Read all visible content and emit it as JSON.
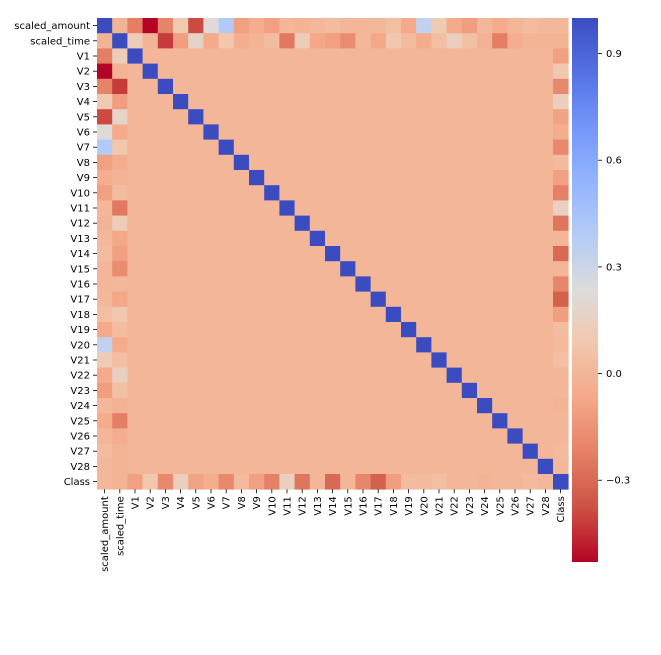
{
  "chart_data": {
    "type": "heatmap",
    "title": "",
    "labels": [
      "scaled_amount",
      "scaled_time",
      "V1",
      "V2",
      "V3",
      "V4",
      "V5",
      "V6",
      "V7",
      "V8",
      "V9",
      "V10",
      "V11",
      "V12",
      "V13",
      "V14",
      "V15",
      "V16",
      "V17",
      "V18",
      "V19",
      "V20",
      "V21",
      "V22",
      "V23",
      "V24",
      "V25",
      "V26",
      "V27",
      "V28",
      "Class"
    ],
    "colormap": "coolwarm_r",
    "vmin": -0.53,
    "vmax": 1.0,
    "colorbar_ticks": [
      -0.3,
      0.0,
      0.3,
      0.6,
      0.9
    ],
    "colorbar_tick_labels": [
      "−0.3",
      "0.0",
      "0.3",
      "0.6",
      "0.9"
    ],
    "row_amount": [
      1.0,
      -0.01,
      -0.23,
      -0.53,
      -0.21,
      0.1,
      -0.39,
      0.22,
      0.4,
      -0.1,
      -0.04,
      -0.1,
      0.0,
      -0.01,
      0.01,
      0.03,
      -0.0,
      -0.0,
      0.01,
      0.04,
      -0.06,
      0.34,
      0.11,
      -0.06,
      -0.11,
      0.01,
      -0.05,
      -0.0,
      0.03,
      0.01,
      0.01
    ],
    "row_time": [
      -0.01,
      1.0,
      0.12,
      -0.01,
      -0.42,
      -0.11,
      0.17,
      -0.06,
      0.08,
      -0.04,
      -0.01,
      0.03,
      -0.25,
      0.12,
      -0.07,
      -0.1,
      -0.18,
      0.01,
      -0.07,
      0.09,
      0.03,
      -0.05,
      0.04,
      0.14,
      0.05,
      -0.02,
      -0.23,
      -0.04,
      -0.01,
      -0.01,
      -0.01
    ],
    "row_class": [
      0.01,
      -0.01,
      -0.1,
      0.09,
      -0.19,
      0.13,
      -0.09,
      -0.04,
      -0.19,
      0.02,
      -0.1,
      -0.22,
      0.15,
      -0.26,
      -0.0,
      -0.3,
      -0.0,
      -0.2,
      -0.33,
      -0.11,
      0.03,
      0.02,
      0.04,
      0.0,
      -0.0,
      -0.01,
      0.0,
      0.0,
      0.02,
      0.01,
      1.0
    ]
  }
}
